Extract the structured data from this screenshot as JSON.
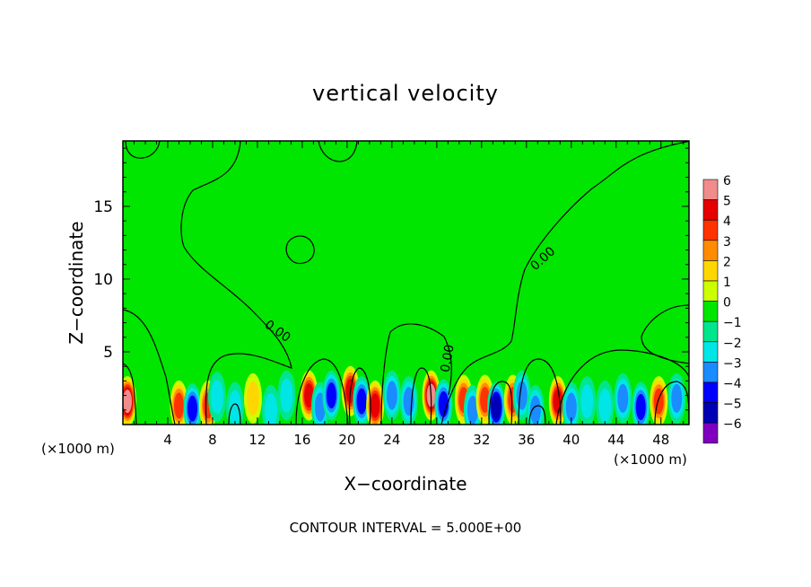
{
  "chart_data": {
    "type": "heatmap",
    "title": "vertical velocity",
    "xlabel": "X−coordinate",
    "ylabel": "Z−coordinate",
    "x_unit_left": "(×1000 m)",
    "x_unit_right": "(×1000 m)",
    "xlim": [
      0,
      50.5
    ],
    "ylim": [
      0,
      19.5
    ],
    "x_ticks": [
      4,
      8,
      12,
      16,
      20,
      24,
      28,
      32,
      36,
      40,
      44,
      48
    ],
    "y_ticks": [
      5,
      10,
      15
    ],
    "footer": "CONTOUR INTERVAL = 5.000E+00",
    "contour_interval": 5.0,
    "contour_labels": [
      {
        "text": "0.00",
        "x": 13.6,
        "z": 6.2
      },
      {
        "text": "0.00",
        "x": 29.3,
        "z": 4.5
      },
      {
        "text": "0.00",
        "x": 37.7,
        "z": 11.2
      }
    ],
    "colorbar": {
      "levels": [
        6,
        5,
        4,
        3,
        2,
        1,
        0,
        -1,
        -2,
        -3,
        -4,
        -5,
        -6
      ],
      "colors": [
        "#f08c8c",
        "#e60000",
        "#ff3300",
        "#ff8c00",
        "#ffd700",
        "#ccff00",
        "#00e600",
        "#00e68c",
        "#00e6e6",
        "#1a8cff",
        "#0000ff",
        "#0000b4",
        "#8000c0"
      ]
    },
    "cells": [
      {
        "x": 0.4,
        "z": 1.6,
        "value": 6
      },
      {
        "x": 5.0,
        "z": 1.3,
        "value": 4
      },
      {
        "x": 6.2,
        "z": 1.1,
        "value": -4
      },
      {
        "x": 7.6,
        "z": 1.3,
        "value": 4
      },
      {
        "x": 8.4,
        "z": 1.9,
        "value": -2
      },
      {
        "x": 10.0,
        "z": 1.2,
        "value": -2
      },
      {
        "x": 11.6,
        "z": 1.8,
        "value": 2
      },
      {
        "x": 13.2,
        "z": 1.0,
        "value": -2
      },
      {
        "x": 14.6,
        "z": 2.0,
        "value": -2
      },
      {
        "x": 16.6,
        "z": 2.0,
        "value": 5
      },
      {
        "x": 17.6,
        "z": 1.2,
        "value": -3
      },
      {
        "x": 18.6,
        "z": 2.0,
        "value": -4
      },
      {
        "x": 20.3,
        "z": 2.3,
        "value": 5
      },
      {
        "x": 21.3,
        "z": 1.6,
        "value": -4
      },
      {
        "x": 22.5,
        "z": 1.3,
        "value": 5
      },
      {
        "x": 24.0,
        "z": 2.0,
        "value": -3
      },
      {
        "x": 25.5,
        "z": 1.6,
        "value": -3
      },
      {
        "x": 27.5,
        "z": 2.0,
        "value": 6
      },
      {
        "x": 28.6,
        "z": 1.4,
        "value": -4
      },
      {
        "x": 30.4,
        "z": 1.7,
        "value": 4
      },
      {
        "x": 31.2,
        "z": 1.0,
        "value": -3
      },
      {
        "x": 32.3,
        "z": 1.7,
        "value": 4
      },
      {
        "x": 33.3,
        "z": 1.2,
        "value": -5
      },
      {
        "x": 34.8,
        "z": 1.7,
        "value": 4
      },
      {
        "x": 35.6,
        "z": 2.0,
        "value": -3
      },
      {
        "x": 36.8,
        "z": 1.0,
        "value": -3
      },
      {
        "x": 38.8,
        "z": 1.6,
        "value": 5
      },
      {
        "x": 40.0,
        "z": 1.2,
        "value": -3
      },
      {
        "x": 41.4,
        "z": 1.6,
        "value": -2
      },
      {
        "x": 43.0,
        "z": 1.3,
        "value": -2
      },
      {
        "x": 44.6,
        "z": 1.8,
        "value": -3
      },
      {
        "x": 46.2,
        "z": 1.2,
        "value": -4
      },
      {
        "x": 47.8,
        "z": 1.6,
        "value": 4
      },
      {
        "x": 49.4,
        "z": 1.8,
        "value": -3
      }
    ]
  }
}
